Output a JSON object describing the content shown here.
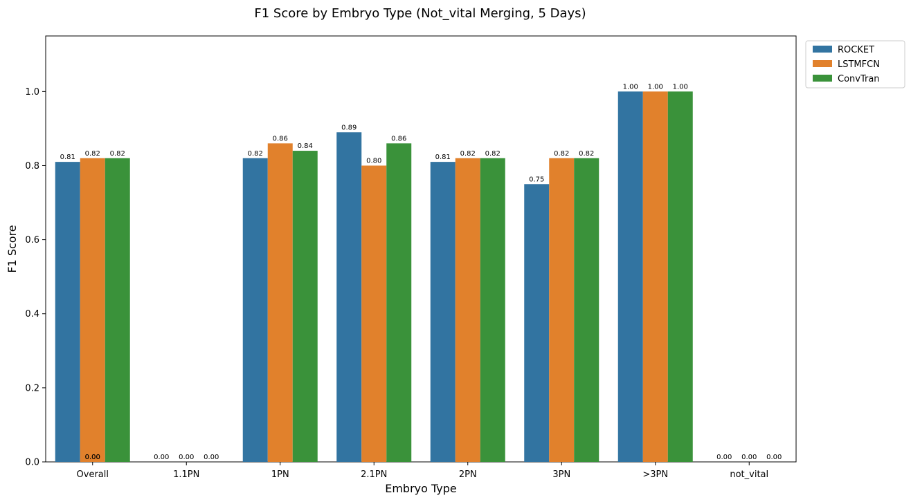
{
  "chart_data": {
    "type": "bar",
    "title": "F1 Score by Embryo Type (Not_vital Merging, 5 Days)",
    "xlabel": "Embryo Type",
    "ylabel": "F1 Score",
    "ylim": [
      0,
      1.15
    ],
    "yticks": [
      "0.0",
      "0.2",
      "0.4",
      "0.6",
      "0.8",
      "1.0"
    ],
    "categories": [
      "Overall",
      "1.1PN",
      "1PN",
      "2.1PN",
      "2PN",
      "3PN",
      ">3PN",
      "not_vital"
    ],
    "series": [
      {
        "name": "ROCKET",
        "color": "#3274a1",
        "values": [
          0.81,
          0.0,
          0.82,
          0.89,
          0.81,
          0.75,
          1.0,
          0.0
        ],
        "labels": [
          "0.81",
          "0.00",
          "0.82",
          "0.89",
          "0.81",
          "0.75",
          "1.00",
          "0.00"
        ]
      },
      {
        "name": "LSTMFCN",
        "color": "#e1812c",
        "values": [
          0.82,
          0.0,
          0.86,
          0.8,
          0.82,
          0.82,
          1.0,
          0.0
        ],
        "labels": [
          "0.82",
          "0.00",
          "0.86",
          "0.80",
          "0.82",
          "0.82",
          "1.00",
          "0.00"
        ]
      },
      {
        "name": "ConvTran",
        "color": "#3a923a",
        "values": [
          0.82,
          0.0,
          0.84,
          0.86,
          0.82,
          0.82,
          1.0,
          0.0
        ],
        "labels": [
          "0.82",
          "0.00",
          "0.84",
          "0.86",
          "0.82",
          "0.82",
          "1.00",
          "0.00"
        ]
      }
    ],
    "extra_labels": [
      {
        "category": "Overall",
        "text": "0.00"
      },
      {
        "category": "Overall",
        "text": "0.00"
      }
    ],
    "legend": {
      "location": "upper right, outside plot"
    },
    "grid": false
  }
}
